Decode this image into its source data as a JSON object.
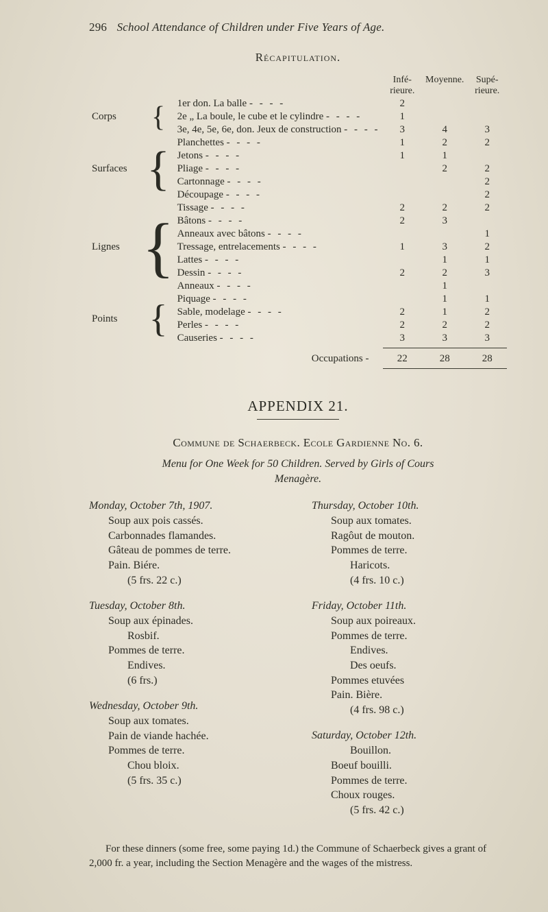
{
  "running_head": {
    "page_no": "296",
    "text": "School Attendance of Children under Five Years of Age."
  },
  "recap": {
    "title": "Récapitulation.",
    "col_heads": [
      "Infé-\nrieure.",
      "Moyenne.",
      "Supé-\nrieure."
    ],
    "groups": [
      {
        "side": "Corps",
        "rows": [
          {
            "item": "1er don. La balle",
            "v": [
              "2",
              "",
              ""
            ]
          },
          {
            "item": "2e   „   La boule, le cube et le cylindre",
            "v": [
              "1",
              "",
              ""
            ]
          },
          {
            "item": "3e, 4e, 5e, 6e, don. Jeux de construction",
            "v": [
              "3",
              "4",
              "3"
            ]
          }
        ]
      },
      {
        "side": "Surfaces",
        "rows": [
          {
            "item": "Planchettes",
            "v": [
              "1",
              "2",
              "2"
            ]
          },
          {
            "item": "Jetons",
            "v": [
              "1",
              "1",
              ""
            ]
          },
          {
            "item": "Pliage",
            "v": [
              "",
              "2",
              "2"
            ]
          },
          {
            "item": "Cartonnage",
            "v": [
              "",
              "",
              "2"
            ]
          },
          {
            "item": "Découpage",
            "v": [
              "",
              "",
              "2"
            ]
          }
        ]
      },
      {
        "side": "Lignes",
        "rows": [
          {
            "item": "Tissage",
            "v": [
              "2",
              "2",
              "2"
            ]
          },
          {
            "item": "Bâtons",
            "v": [
              "2",
              "3",
              ""
            ]
          },
          {
            "item": "Anneaux avec bâtons",
            "v": [
              "",
              "",
              "1"
            ]
          },
          {
            "item": "Tressage, entrelacements",
            "v": [
              "1",
              "3",
              "2"
            ]
          },
          {
            "item": "Lattes",
            "v": [
              "",
              "1",
              "1"
            ]
          },
          {
            "item": "Dessin",
            "v": [
              "2",
              "2",
              "3"
            ]
          },
          {
            "item": "Anneaux",
            "v": [
              "",
              "1",
              ""
            ]
          }
        ]
      },
      {
        "side": "Points",
        "rows": [
          {
            "item": "Piquage",
            "v": [
              "",
              "1",
              "1"
            ]
          },
          {
            "item": "Sable, modelage",
            "v": [
              "2",
              "1",
              "2"
            ]
          },
          {
            "item": "Perles",
            "v": [
              "2",
              "2",
              "2"
            ]
          },
          {
            "item": "Causeries",
            "v": [
              "3",
              "3",
              "3"
            ]
          }
        ]
      }
    ],
    "total": {
      "label": "Occupations -",
      "v": [
        "22",
        "28",
        "28"
      ]
    }
  },
  "appendix": {
    "title": "APPENDIX 21.",
    "commune": "Commune de Schaerbeck.   Ecole Gardienne No. 6.",
    "menu_line": "Menu for One Week for 50 Children. Served by Girls of Cours Menagère.",
    "left": [
      {
        "head": "Monday, October 7th, 1907.",
        "dishes": [
          "Soup aux pois cassés.",
          "Carbonnades flamandes.",
          "Gâteau de pommes de terre.",
          "Pain.  Biére."
        ],
        "sub": "(5 frs. 22 c.)"
      },
      {
        "head": "Tuesday, October 8th.",
        "dishes": [
          "Soup aux épinades.",
          "    Rosbif.",
          "Pommes de terre.",
          "    Endives."
        ],
        "sub": "(6 frs.)"
      },
      {
        "head": "Wednesday, October 9th.",
        "dishes": [
          "Soup aux tomates.",
          "Pain de viande hachée.",
          "Pommes de terre.",
          "    Chou bloix."
        ],
        "sub": "(5 frs. 35 c.)"
      }
    ],
    "right": [
      {
        "head": "Thursday, October 10th.",
        "dishes": [
          "Soup aux tomates.",
          "Ragôut de mouton.",
          "Pommes de terre.",
          "    Haricots."
        ],
        "sub": "(4 frs. 10 c.)"
      },
      {
        "head": "Friday, October 11th.",
        "dishes": [
          "Soup aux poireaux.",
          "Pommes de terre.",
          "    Endives.",
          "    Des oeufs.",
          "Pommes etuvées",
          "Pain.  Bière."
        ],
        "sub": "(4 frs. 98 c.)"
      },
      {
        "head": "Saturday, October 12th.",
        "dishes": [
          "    Bouillon.",
          "Boeuf bouilli.",
          "Pommes de terre.",
          "Choux rouges."
        ],
        "sub": "(5 frs. 42 c.)"
      }
    ],
    "footnote": "For these dinners (some free, some paying 1d.) the Commune of Schaerbeck gives a grant of 2,000 fr. a year, including the Section Menagère and the wages of the mistress."
  }
}
